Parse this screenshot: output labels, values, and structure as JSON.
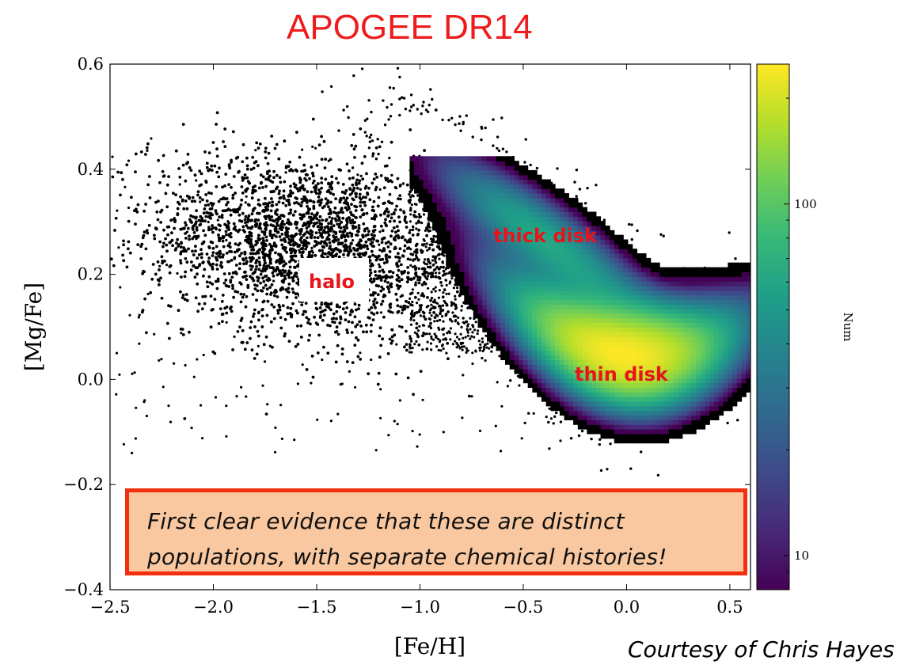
{
  "slide": {
    "title": "APOGEE DR14",
    "credit": "Courtesy of Chris Hayes",
    "callout": {
      "line1": "First clear evidence that these are distinct",
      "line2": "populations, with separate chemical histories!",
      "fill": "#f9c8a0",
      "border": "#f2300f"
    }
  },
  "chart_data": {
    "type": "heatmap",
    "xlabel": "[Fe/H]",
    "ylabel": "[Mg/Fe]",
    "xlim": [
      -2.5,
      0.6
    ],
    "ylim": [
      -0.4,
      0.6
    ],
    "xticks": [
      -2.5,
      -2.0,
      -1.5,
      -1.0,
      -0.5,
      0.0,
      0.5
    ],
    "xtick_labels": [
      "−2.5",
      "−2.0",
      "−1.5",
      "−1.0",
      "−0.5",
      "0.0",
      "0.5"
    ],
    "yticks": [
      -0.4,
      -0.2,
      0.0,
      0.2,
      0.4,
      0.6
    ],
    "ytick_labels": [
      "−0.4",
      "−0.2",
      "0.0",
      "0.2",
      "0.4",
      "0.6"
    ],
    "colorbar": {
      "label": "Num",
      "scale": "log",
      "range": [
        8,
        250
      ],
      "ticks": [
        10,
        100
      ],
      "tick_labels": [
        "10",
        "100"
      ],
      "colormap": "viridis"
    },
    "grid": false,
    "annotations": [
      {
        "text": "halo",
        "x": -1.5,
        "y": 0.19,
        "boxed": true
      },
      {
        "text": "thick disk",
        "x": -0.38,
        "y": 0.27,
        "boxed": false
      },
      {
        "text": "thin disk",
        "x": -0.02,
        "y": 0.01,
        "boxed": false
      }
    ],
    "populations": [
      {
        "name": "halo",
        "feh_range": [
          -2.5,
          -0.8
        ],
        "mgfe_range": [
          0.0,
          0.45
        ],
        "center": [
          -1.5,
          0.25
        ]
      },
      {
        "name": "thick disk",
        "center": [
          -0.4,
          0.25
        ],
        "peak_count": 60
      },
      {
        "name": "thin disk",
        "center": [
          -0.05,
          0.05
        ],
        "peak_count": 250
      }
    ]
  }
}
